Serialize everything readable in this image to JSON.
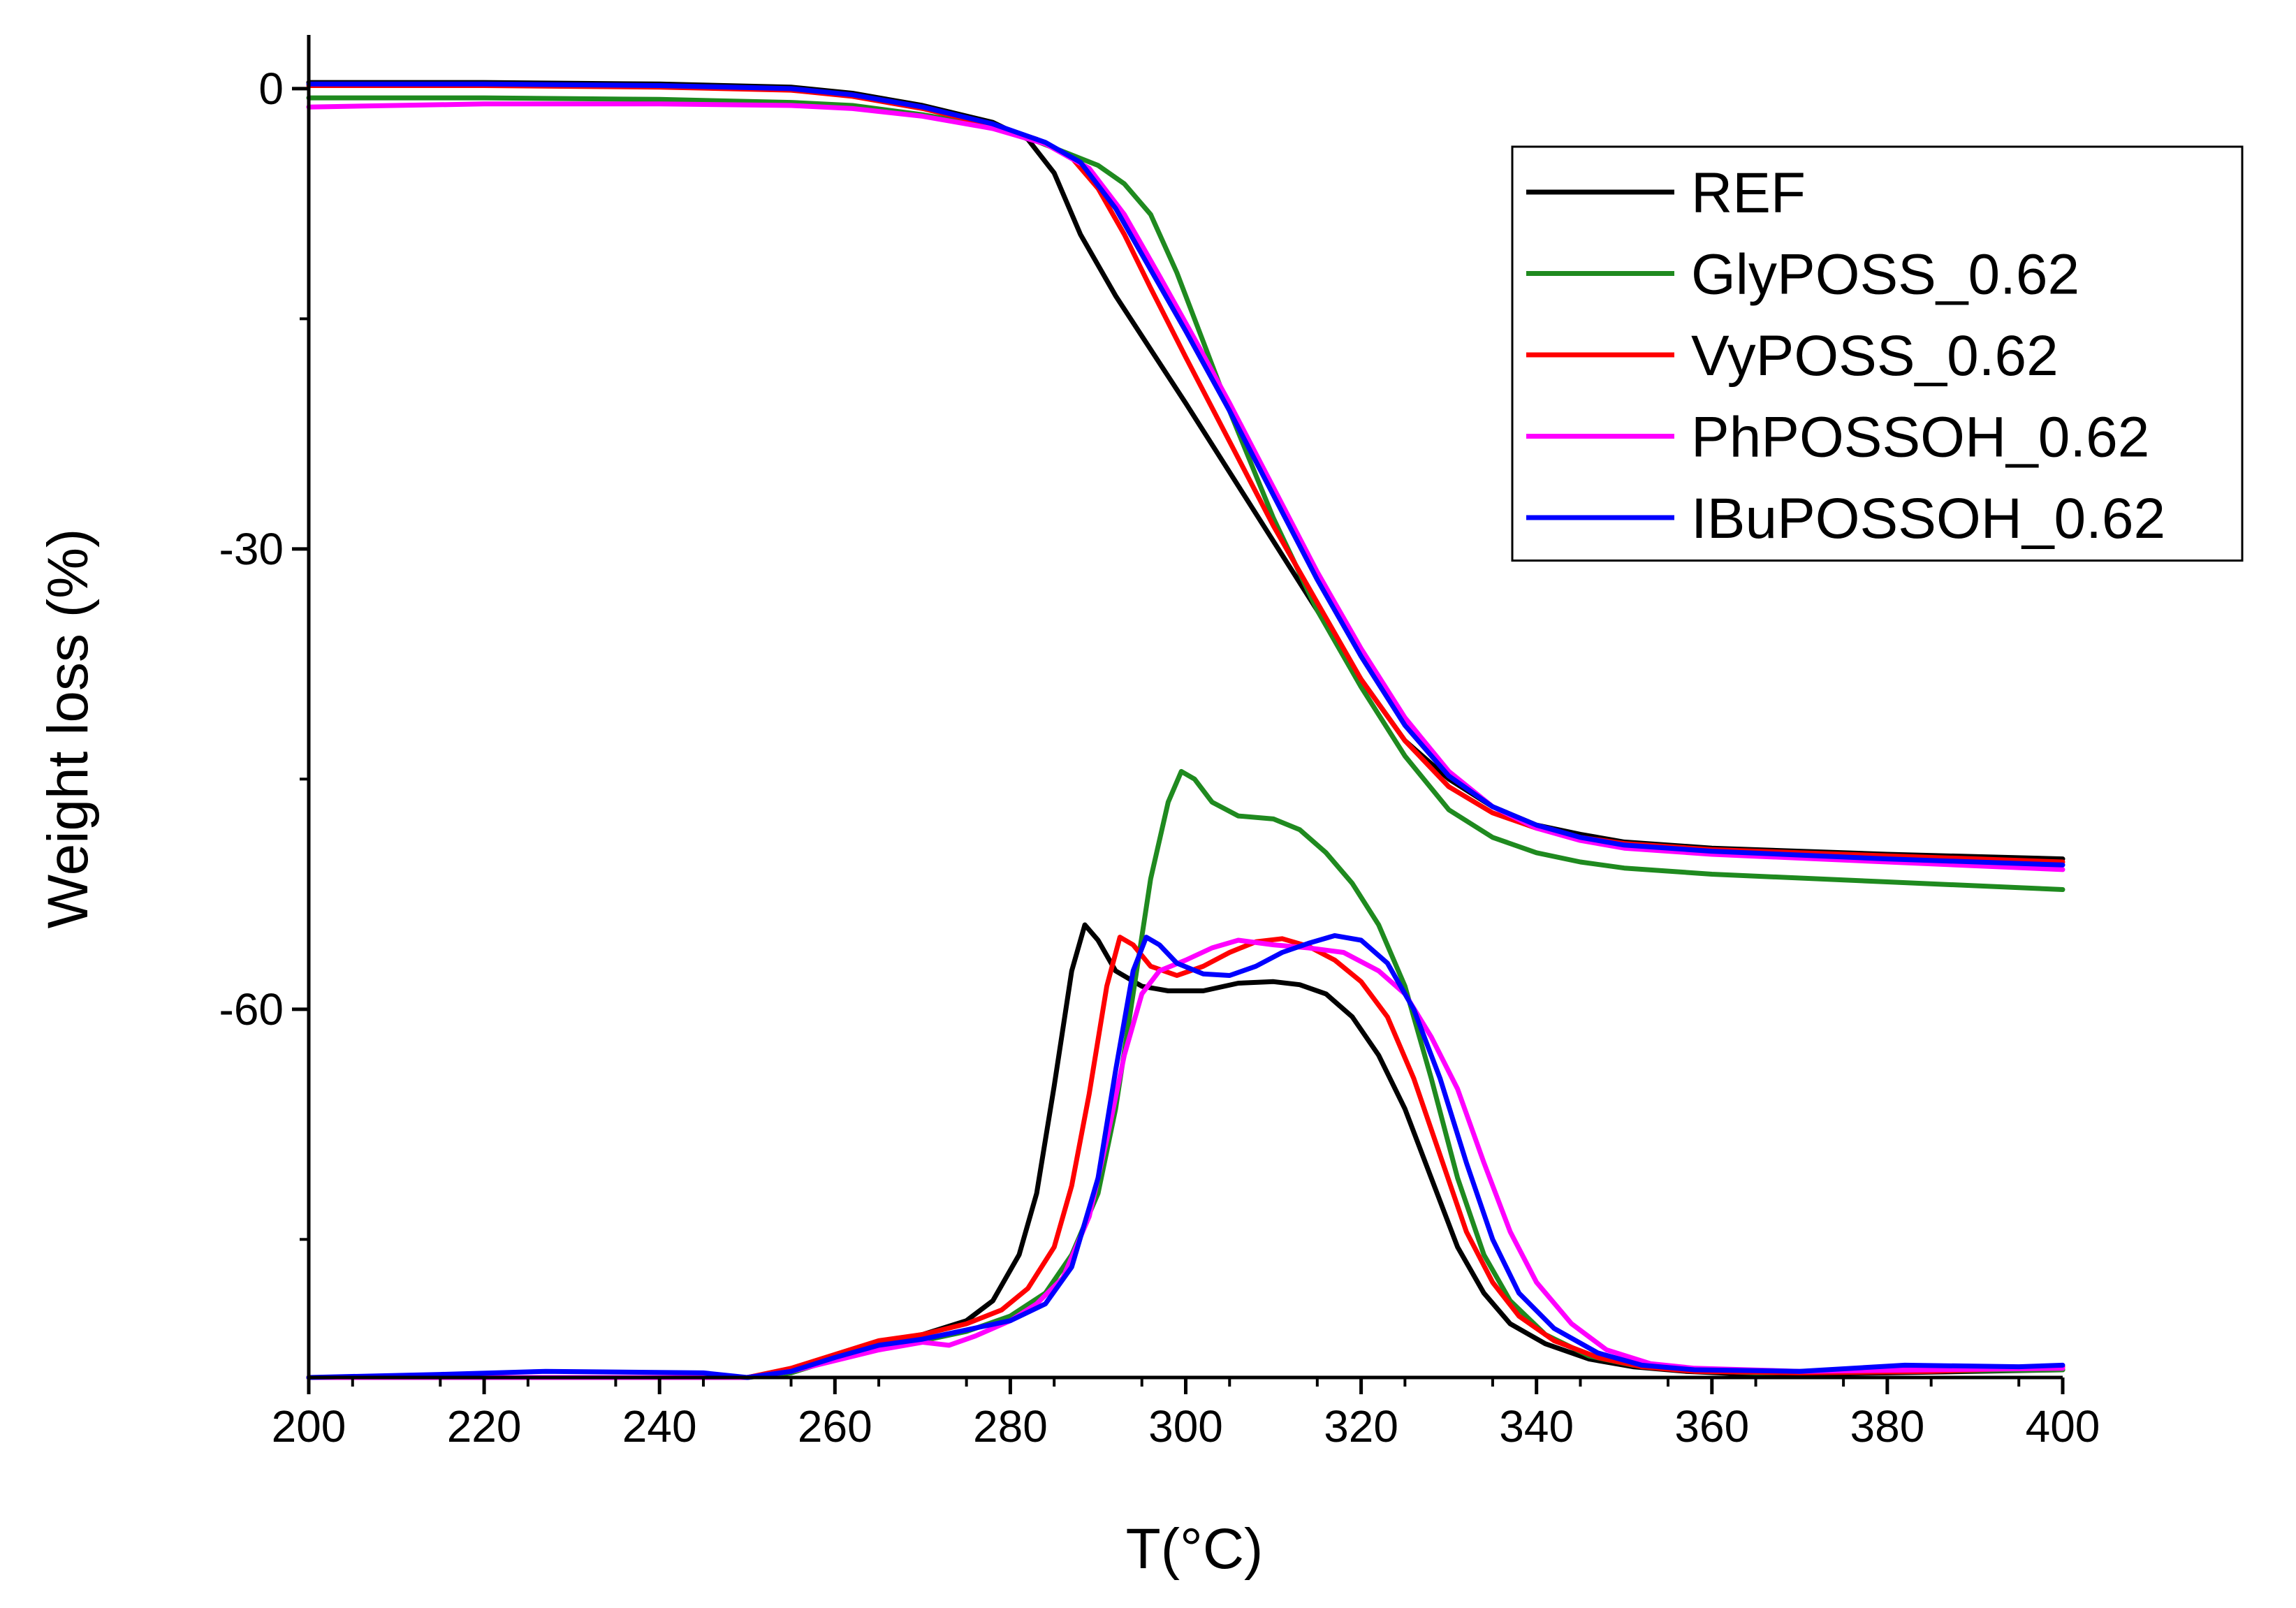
{
  "chart_data": {
    "type": "line",
    "title": "",
    "xlabel": "T(°C)",
    "ylabel": "Weight loss (%)",
    "xlim": [
      200,
      400
    ],
    "ylim": [
      -84,
      3.5
    ],
    "x_ticks": [
      200,
      220,
      240,
      260,
      280,
      300,
      320,
      340,
      360,
      380,
      400
    ],
    "y_ticks": [
      0,
      -30,
      -60
    ],
    "y_minor_ticks": [
      -15,
      -45,
      -75
    ],
    "legend_position": "top-right",
    "grid": false,
    "series": [
      {
        "name": "REF",
        "color": "#000000",
        "tga": [
          [
            200,
            0.4
          ],
          [
            220,
            0.4
          ],
          [
            240,
            0.3
          ],
          [
            255,
            0.1
          ],
          [
            262,
            -0.3
          ],
          [
            270,
            -1.1
          ],
          [
            278,
            -2.2
          ],
          [
            282,
            -3.3
          ],
          [
            285,
            -5.5
          ],
          [
            288,
            -9.5
          ],
          [
            292,
            -13.5
          ],
          [
            296,
            -17
          ],
          [
            300,
            -20.5
          ],
          [
            305,
            -25
          ],
          [
            310,
            -29.5
          ],
          [
            315,
            -34
          ],
          [
            320,
            -38.5
          ],
          [
            325,
            -42.5
          ],
          [
            330,
            -45
          ],
          [
            335,
            -46.8
          ],
          [
            340,
            -48
          ],
          [
            345,
            -48.6
          ],
          [
            350,
            -49.1
          ],
          [
            360,
            -49.5
          ],
          [
            380,
            -49.9
          ],
          [
            400,
            -50.2
          ]
        ],
        "dtg": [
          [
            200,
            -84
          ],
          [
            250,
            -84
          ],
          [
            255,
            -83.5
          ],
          [
            260,
            -82.6
          ],
          [
            265,
            -81.7
          ],
          [
            270,
            -81.2
          ],
          [
            275,
            -80.3
          ],
          [
            278,
            -79
          ],
          [
            281,
            -76
          ],
          [
            283,
            -72
          ],
          [
            285,
            -65
          ],
          [
            287,
            -57.5
          ],
          [
            288.5,
            -54.5
          ],
          [
            290,
            -55.5
          ],
          [
            292,
            -57.5
          ],
          [
            295,
            -58.5
          ],
          [
            298,
            -58.8
          ],
          [
            302,
            -58.8
          ],
          [
            306,
            -58.3
          ],
          [
            310,
            -58.2
          ],
          [
            313,
            -58.4
          ],
          [
            316,
            -59
          ],
          [
            319,
            -60.5
          ],
          [
            322,
            -63
          ],
          [
            325,
            -66.5
          ],
          [
            328,
            -71
          ],
          [
            331,
            -75.5
          ],
          [
            334,
            -78.5
          ],
          [
            337,
            -80.5
          ],
          [
            341,
            -81.8
          ],
          [
            346,
            -82.8
          ],
          [
            351,
            -83.3
          ],
          [
            357,
            -83.6
          ],
          [
            365,
            -83.8
          ],
          [
            380,
            -83.7
          ],
          [
            400,
            -83.5
          ]
        ]
      },
      {
        "name": "GlyPOSS_0.62",
        "color": "#1f8a1f",
        "tga": [
          [
            200,
            -0.6
          ],
          [
            220,
            -0.6
          ],
          [
            240,
            -0.7
          ],
          [
            255,
            -0.9
          ],
          [
            262,
            -1.1
          ],
          [
            270,
            -1.7
          ],
          [
            278,
            -2.5
          ],
          [
            282,
            -3.2
          ],
          [
            286,
            -4.1
          ],
          [
            290,
            -5
          ],
          [
            293,
            -6.2
          ],
          [
            296,
            -8.2
          ],
          [
            299,
            -12
          ],
          [
            302,
            -16.5
          ],
          [
            305,
            -21
          ],
          [
            310,
            -28
          ],
          [
            315,
            -34
          ],
          [
            320,
            -39
          ],
          [
            325,
            -43.5
          ],
          [
            330,
            -47
          ],
          [
            335,
            -48.8
          ],
          [
            340,
            -49.8
          ],
          [
            345,
            -50.4
          ],
          [
            350,
            -50.8
          ],
          [
            360,
            -51.2
          ],
          [
            380,
            -51.7
          ],
          [
            400,
            -52.2
          ]
        ],
        "dtg": [
          [
            200,
            -84
          ],
          [
            250,
            -84
          ],
          [
            255,
            -83.7
          ],
          [
            260,
            -82.8
          ],
          [
            265,
            -82
          ],
          [
            270,
            -81.6
          ],
          [
            275,
            -81
          ],
          [
            280,
            -80
          ],
          [
            284,
            -78.5
          ],
          [
            287,
            -76
          ],
          [
            290,
            -72
          ],
          [
            292,
            -66.5
          ],
          [
            294,
            -59
          ],
          [
            296,
            -51.5
          ],
          [
            298,
            -46.5
          ],
          [
            299.5,
            -44.5
          ],
          [
            301,
            -45
          ],
          [
            303,
            -46.5
          ],
          [
            306,
            -47.4
          ],
          [
            310,
            -47.6
          ],
          [
            313,
            -48.3
          ],
          [
            316,
            -49.8
          ],
          [
            319,
            -51.8
          ],
          [
            322,
            -54.5
          ],
          [
            325,
            -58.5
          ],
          [
            328,
            -64.5
          ],
          [
            331,
            -71
          ],
          [
            334,
            -76
          ],
          [
            337,
            -79
          ],
          [
            341,
            -81.2
          ],
          [
            346,
            -82.6
          ],
          [
            351,
            -83.2
          ],
          [
            357,
            -83.5
          ],
          [
            365,
            -83.7
          ],
          [
            380,
            -83.6
          ],
          [
            400,
            -83.5
          ]
        ]
      },
      {
        "name": "VyPOSS_0.62",
        "color": "#ff0000",
        "tga": [
          [
            200,
            0.2
          ],
          [
            220,
            0.2
          ],
          [
            240,
            0.1
          ],
          [
            255,
            -0.1
          ],
          [
            262,
            -0.5
          ],
          [
            270,
            -1.3
          ],
          [
            278,
            -2.4
          ],
          [
            283,
            -3.3
          ],
          [
            287,
            -4.5
          ],
          [
            290,
            -6.5
          ],
          [
            293,
            -9.5
          ],
          [
            296,
            -13
          ],
          [
            300,
            -17.5
          ],
          [
            305,
            -23
          ],
          [
            310,
            -28.5
          ],
          [
            315,
            -33.5
          ],
          [
            320,
            -38.5
          ],
          [
            325,
            -42.5
          ],
          [
            330,
            -45.5
          ],
          [
            335,
            -47.2
          ],
          [
            340,
            -48.2
          ],
          [
            345,
            -48.8
          ],
          [
            350,
            -49.2
          ],
          [
            360,
            -49.6
          ],
          [
            380,
            -50
          ],
          [
            400,
            -50.4
          ]
        ],
        "dtg": [
          [
            200,
            -84
          ],
          [
            250,
            -84
          ],
          [
            255,
            -83.4
          ],
          [
            260,
            -82.5
          ],
          [
            265,
            -81.6
          ],
          [
            270,
            -81.2
          ],
          [
            275,
            -80.5
          ],
          [
            279,
            -79.6
          ],
          [
            282,
            -78.2
          ],
          [
            285,
            -75.5
          ],
          [
            287,
            -71.5
          ],
          [
            289,
            -65.5
          ],
          [
            291,
            -58.5
          ],
          [
            292.5,
            -55.3
          ],
          [
            294,
            -55.8
          ],
          [
            296,
            -57.2
          ],
          [
            299,
            -57.8
          ],
          [
            302,
            -57.2
          ],
          [
            305,
            -56.3
          ],
          [
            308,
            -55.6
          ],
          [
            311,
            -55.4
          ],
          [
            314,
            -55.9
          ],
          [
            317,
            -56.8
          ],
          [
            320,
            -58.2
          ],
          [
            323,
            -60.5
          ],
          [
            326,
            -64.5
          ],
          [
            329,
            -69.5
          ],
          [
            332,
            -74.5
          ],
          [
            335,
            -77.8
          ],
          [
            338,
            -80
          ],
          [
            342,
            -81.6
          ],
          [
            347,
            -82.7
          ],
          [
            352,
            -83.3
          ],
          [
            358,
            -83.6
          ],
          [
            370,
            -83.7
          ],
          [
            385,
            -83.6
          ],
          [
            400,
            -83.3
          ]
        ]
      },
      {
        "name": "PhPOSSOH_0.62",
        "color": "#ff00ff",
        "tga": [
          [
            200,
            -1.2
          ],
          [
            220,
            -1
          ],
          [
            240,
            -1
          ],
          [
            255,
            -1.1
          ],
          [
            262,
            -1.3
          ],
          [
            270,
            -1.8
          ],
          [
            278,
            -2.6
          ],
          [
            284,
            -3.6
          ],
          [
            289,
            -5.2
          ],
          [
            293,
            -8.2
          ],
          [
            297,
            -12.2
          ],
          [
            301,
            -16.3
          ],
          [
            305,
            -20.5
          ],
          [
            310,
            -26
          ],
          [
            315,
            -31.5
          ],
          [
            320,
            -36.5
          ],
          [
            325,
            -41
          ],
          [
            330,
            -44.5
          ],
          [
            335,
            -46.8
          ],
          [
            340,
            -48.2
          ],
          [
            345,
            -49
          ],
          [
            350,
            -49.5
          ],
          [
            360,
            -49.9
          ],
          [
            380,
            -50.4
          ],
          [
            400,
            -50.9
          ]
        ],
        "dtg": [
          [
            200,
            -84
          ],
          [
            250,
            -84
          ],
          [
            255,
            -83.6
          ],
          [
            260,
            -82.9
          ],
          [
            265,
            -82.2
          ],
          [
            270,
            -81.7
          ],
          [
            273,
            -81.9
          ],
          [
            276,
            -81.3
          ],
          [
            280,
            -80.3
          ],
          [
            283,
            -79.2
          ],
          [
            286,
            -77.5
          ],
          [
            289,
            -73.5
          ],
          [
            291,
            -68.5
          ],
          [
            293,
            -63
          ],
          [
            295,
            -59
          ],
          [
            297,
            -57.5
          ],
          [
            300,
            -56.8
          ],
          [
            303,
            -56
          ],
          [
            306,
            -55.5
          ],
          [
            310,
            -55.8
          ],
          [
            314,
            -56
          ],
          [
            318,
            -56.3
          ],
          [
            322,
            -57.5
          ],
          [
            325,
            -59
          ],
          [
            328,
            -61.8
          ],
          [
            331,
            -65.2
          ],
          [
            334,
            -70
          ],
          [
            337,
            -74.5
          ],
          [
            340,
            -77.8
          ],
          [
            344,
            -80.5
          ],
          [
            348,
            -82.2
          ],
          [
            353,
            -83.1
          ],
          [
            358,
            -83.4
          ],
          [
            370,
            -83.6
          ],
          [
            385,
            -83.5
          ],
          [
            400,
            -83.4
          ]
        ]
      },
      {
        "name": "IBuPOSSOH_0.62",
        "color": "#0000ff",
        "tga": [
          [
            200,
            0.3
          ],
          [
            220,
            0.3
          ],
          [
            240,
            0.2
          ],
          [
            255,
            0
          ],
          [
            262,
            -0.4
          ],
          [
            270,
            -1.2
          ],
          [
            278,
            -2.3
          ],
          [
            284,
            -3.5
          ],
          [
            288,
            -4.8
          ],
          [
            292,
            -7.8
          ],
          [
            296,
            -11.8
          ],
          [
            300,
            -15.8
          ],
          [
            305,
            -21
          ],
          [
            310,
            -26.5
          ],
          [
            315,
            -32
          ],
          [
            320,
            -37
          ],
          [
            325,
            -41.5
          ],
          [
            330,
            -44.8
          ],
          [
            335,
            -46.8
          ],
          [
            340,
            -48
          ],
          [
            345,
            -48.8
          ],
          [
            350,
            -49.3
          ],
          [
            360,
            -49.7
          ],
          [
            380,
            -50.2
          ],
          [
            400,
            -50.6
          ]
        ],
        "dtg": [
          [
            200,
            -84
          ],
          [
            215,
            -83.8
          ],
          [
            227,
            -83.6
          ],
          [
            245,
            -83.7
          ],
          [
            250,
            -84
          ],
          [
            255,
            -83.6
          ],
          [
            260,
            -82.7
          ],
          [
            265,
            -81.9
          ],
          [
            270,
            -81.5
          ],
          [
            275,
            -80.9
          ],
          [
            280,
            -80.3
          ],
          [
            284,
            -79.2
          ],
          [
            287,
            -76.8
          ],
          [
            290,
            -71
          ],
          [
            292,
            -64
          ],
          [
            294,
            -57.5
          ],
          [
            295.5,
            -55.3
          ],
          [
            297,
            -55.8
          ],
          [
            299,
            -57
          ],
          [
            302,
            -57.7
          ],
          [
            305,
            -57.8
          ],
          [
            308,
            -57.2
          ],
          [
            311,
            -56.3
          ],
          [
            314,
            -55.7
          ],
          [
            317,
            -55.2
          ],
          [
            320,
            -55.5
          ],
          [
            323,
            -57
          ],
          [
            326,
            -60
          ],
          [
            329,
            -64.5
          ],
          [
            332,
            -70
          ],
          [
            335,
            -75
          ],
          [
            338,
            -78.5
          ],
          [
            342,
            -80.8
          ],
          [
            347,
            -82.4
          ],
          [
            352,
            -83.2
          ],
          [
            358,
            -83.5
          ],
          [
            370,
            -83.6
          ],
          [
            382,
            -83.2
          ],
          [
            395,
            -83.3
          ],
          [
            400,
            -83.2
          ]
        ]
      }
    ]
  }
}
